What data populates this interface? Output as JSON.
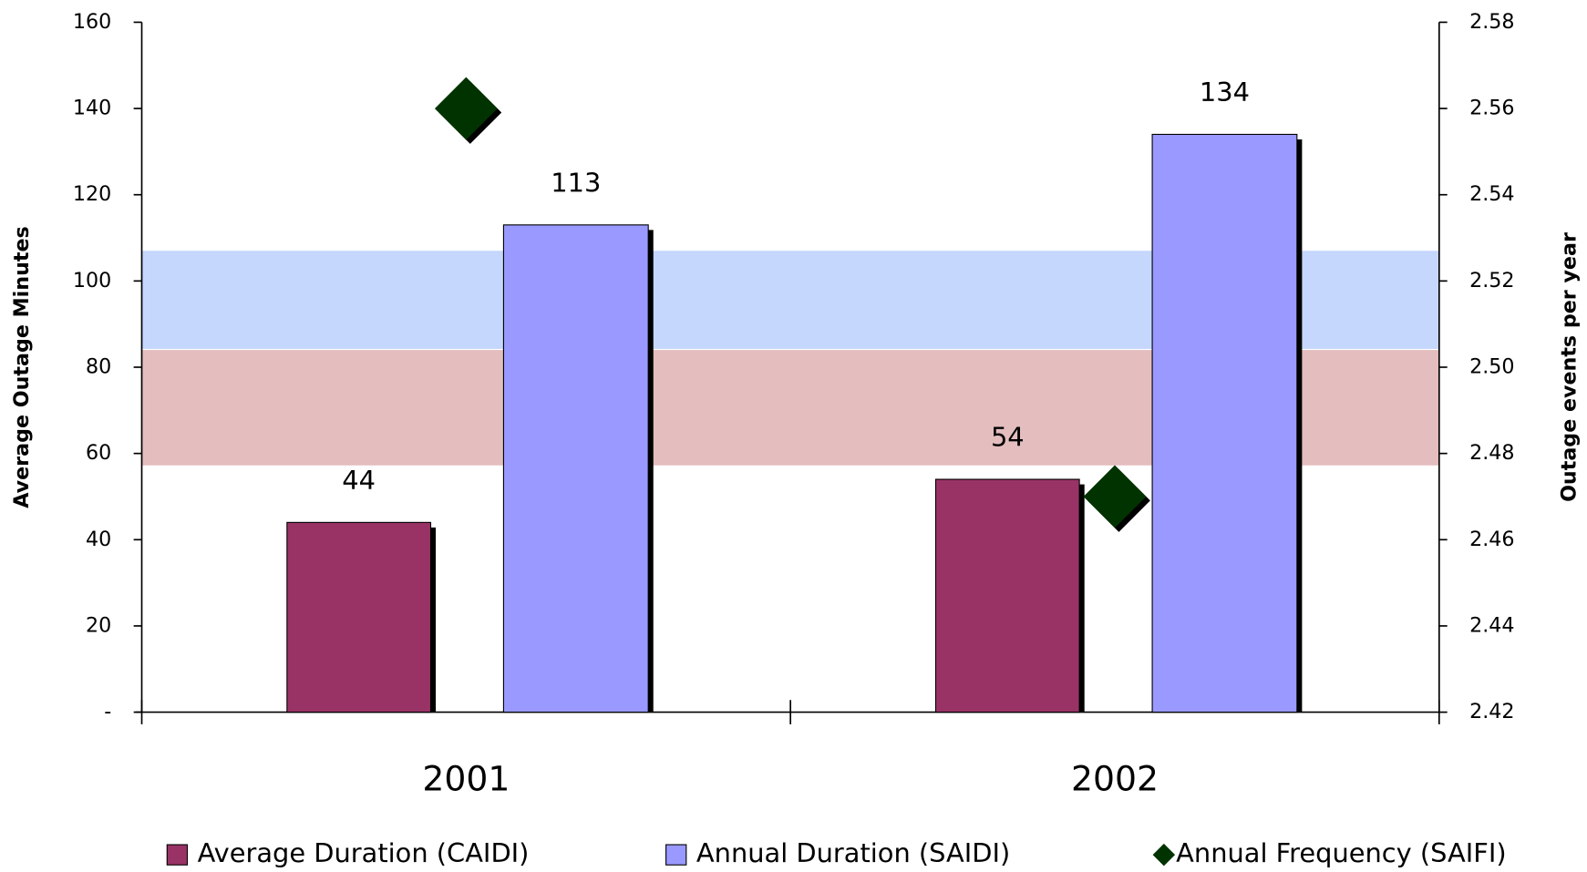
{
  "chart_data": {
    "type": "bar",
    "categories": [
      "2001",
      "2002"
    ],
    "series": [
      {
        "name": "Average Duration (CAIDI)",
        "color": "#993366",
        "values": [
          44,
          54
        ]
      },
      {
        "name": "Annual Duration (SAIDI)",
        "color": "#9999ff",
        "values": [
          113,
          134
        ]
      },
      {
        "name": "Annual Frequency (SAIFI)",
        "color": "#003300",
        "values": [
          2.56,
          2.47
        ],
        "axis": "y2",
        "type": "scatter"
      }
    ],
    "bands": [
      {
        "from": 84,
        "to": 107,
        "color": "#c5d7fd"
      },
      {
        "from": 57,
        "to": 84,
        "color": "#e4bdbe"
      }
    ],
    "ylabel": "Average Outage Minutes",
    "y2label": "Outage events per year",
    "ylim": [
      0,
      160
    ],
    "yticks": [
      {
        "value": 0,
        "label": "-"
      },
      20,
      40,
      60,
      80,
      100,
      120,
      140,
      160
    ],
    "y2lim": [
      2.42,
      2.58
    ],
    "y2ticks": [
      2.42,
      2.44,
      2.46,
      2.48,
      {
        "value": 2.5,
        "label": "2.50"
      },
      2.52,
      2.54,
      2.56,
      2.58
    ],
    "legend": "bottom"
  }
}
